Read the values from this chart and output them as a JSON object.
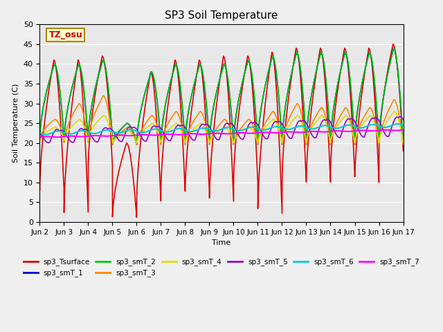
{
  "title": "SP3 Soil Temperature",
  "xlabel": "Time",
  "ylabel": "Soil Temperature (C)",
  "ylim": [
    0,
    50
  ],
  "annotation_text": "TZ_osu",
  "annotation_color": "#cc0000",
  "annotation_bg": "#ffffcc",
  "annotation_border": "#aa8800",
  "series": {
    "sp3_Tsurface": {
      "color": "#dd0000",
      "lw": 1.2
    },
    "sp3_smT_1": {
      "color": "#0000cc",
      "lw": 1.2
    },
    "sp3_smT_2": {
      "color": "#00cc00",
      "lw": 1.2
    },
    "sp3_smT_3": {
      "color": "#ff8800",
      "lw": 1.2
    },
    "sp3_smT_4": {
      "color": "#dddd00",
      "lw": 1.2
    },
    "sp3_smT_5": {
      "color": "#9900cc",
      "lw": 1.2
    },
    "sp3_smT_6": {
      "color": "#00cccc",
      "lw": 1.5
    },
    "sp3_smT_7": {
      "color": "#ff00ff",
      "lw": 1.5
    }
  },
  "xtick_labels": [
    "Jun 2",
    "Jun 3",
    "Jun 4",
    "Jun 5",
    "Jun 6",
    "Jun 7",
    "Jun 8",
    "Jun 9",
    "Jun 10",
    "Jun 11",
    "Jun 12",
    "Jun 13",
    "Jun 14",
    "Jun 15",
    "Jun 16",
    "Jun 17"
  ],
  "ytick_labels": [
    0,
    5,
    10,
    15,
    20,
    25,
    30,
    35,
    40,
    45,
    50
  ],
  "bg_color": "#e8e8e8",
  "plot_bg": "#e8e8e8",
  "fig_bg": "#f0f0f0",
  "grid_color": "#ffffff"
}
